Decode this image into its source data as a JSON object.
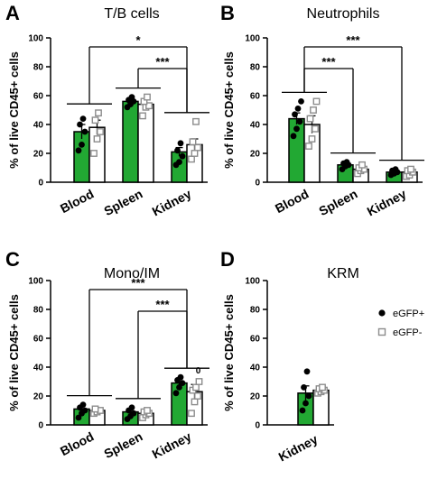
{
  "colors": {
    "egfp_pos": "#22a833",
    "egfp_neg": "#ffffff",
    "axis": "#000000",
    "square": "#8c8c8c"
  },
  "legend": {
    "items": [
      {
        "label": "eGFP+",
        "marker": "dot"
      },
      {
        "label": "eGFP-",
        "marker": "square"
      }
    ]
  },
  "chart_data": [
    {
      "letter": "A",
      "title": "T/B cells",
      "type": "bar",
      "ylabel": "% of live CD45+ cells",
      "ylim": [
        0,
        100
      ],
      "yticks": [
        "0",
        "20",
        "40",
        "60",
        "80",
        "100"
      ],
      "categories": [
        "Blood",
        "Spleen",
        "Kidney"
      ],
      "series": [
        {
          "name": "eGFP+",
          "values": [
            35,
            56,
            21
          ],
          "errors": [
            5,
            2,
            3
          ],
          "points": [
            [
              22,
              26,
              35,
              40,
              44
            ],
            [
              52,
              54,
              56,
              57,
              59
            ],
            [
              12,
              14,
              18,
              22,
              27
            ]
          ]
        },
        {
          "name": "eGFP-",
          "values": [
            38,
            54,
            26
          ],
          "errors": [
            5,
            3,
            4
          ],
          "points": [
            [
              20,
              30,
              35,
              43,
              48
            ],
            [
              46,
              52,
              53,
              56,
              59
            ],
            [
              16,
              20,
              24,
              28,
              42
            ]
          ]
        }
      ],
      "significance": [
        {
          "from": 0,
          "to": 2,
          "label": "*"
        },
        {
          "from": 1,
          "to": 2,
          "label": "***"
        }
      ]
    },
    {
      "letter": "B",
      "title": "Neutrophils",
      "type": "bar",
      "ylabel": "% of live CD45+ cells",
      "ylim": [
        0,
        100
      ],
      "yticks": [
        "0",
        "20",
        "40",
        "60",
        "80",
        "100"
      ],
      "categories": [
        "Blood",
        "Spleen",
        "Kidney"
      ],
      "series": [
        {
          "name": "eGFP+",
          "values": [
            44,
            12,
            7
          ],
          "errors": [
            4,
            1.5,
            1
          ],
          "points": [
            [
              32,
              37,
              42,
              47,
              51,
              56
            ],
            [
              9,
              11,
              12,
              13,
              14
            ],
            [
              5,
              6,
              7,
              8,
              9
            ]
          ]
        },
        {
          "name": "eGFP-",
          "values": [
            40,
            9,
            7
          ],
          "errors": [
            6,
            1.5,
            1
          ],
          "points": [
            [
              25,
              30,
              37,
              44,
              50,
              56
            ],
            [
              6,
              8,
              9,
              10,
              12
            ],
            [
              4,
              5,
              7,
              8,
              9
            ]
          ]
        }
      ],
      "significance": [
        {
          "from": 0,
          "to": 2,
          "label": "***"
        },
        {
          "from": 0,
          "to": 1,
          "label": "***"
        }
      ]
    },
    {
      "letter": "C",
      "title": "Mono/IM",
      "type": "bar",
      "ylabel": "% of live CD45+ cells",
      "ylim": [
        0,
        100
      ],
      "yticks": [
        "0",
        "20",
        "40",
        "60",
        "80",
        "100"
      ],
      "categories": [
        "Blood",
        "Spleen",
        "Kidney"
      ],
      "annotation": {
        "text": "0",
        "category": 2
      },
      "series": [
        {
          "name": "eGFP+",
          "values": [
            11,
            9,
            29
          ],
          "errors": [
            2,
            2,
            3
          ],
          "points": [
            [
              5,
              8,
              10,
              12,
              14
            ],
            [
              4,
              6,
              8,
              10,
              12
            ],
            [
              22,
              26,
              29,
              31,
              33
            ]
          ]
        },
        {
          "name": "eGFP-",
          "values": [
            10,
            8,
            23
          ],
          "errors": [
            1.5,
            1.5,
            5
          ],
          "points": [
            [
              8,
              9,
              10,
              11
            ],
            [
              5,
              7,
              8,
              9,
              10
            ],
            [
              8,
              16,
              20,
              24,
              26,
              30
            ]
          ]
        }
      ],
      "significance": [
        {
          "from": 0,
          "to": 2,
          "label": "***"
        },
        {
          "from": 1,
          "to": 2,
          "label": "***"
        }
      ]
    },
    {
      "letter": "D",
      "title": "KRM",
      "type": "bar",
      "ylabel": "% of live CD45+ cells",
      "ylim": [
        0,
        100
      ],
      "yticks": [
        "0",
        "20",
        "40",
        "60",
        "80",
        "100"
      ],
      "categories": [
        "Kidney"
      ],
      "series": [
        {
          "name": "eGFP+",
          "values": [
            22
          ],
          "errors": [
            5
          ],
          "points": [
            [
              10,
              15,
              20,
              26,
              37
            ]
          ]
        },
        {
          "name": "eGFP-",
          "values": [
            24
          ],
          "errors": [
            2
          ],
          "points": [
            [
              22,
              23,
              24,
              25,
              26
            ]
          ]
        }
      ],
      "significance": []
    }
  ]
}
